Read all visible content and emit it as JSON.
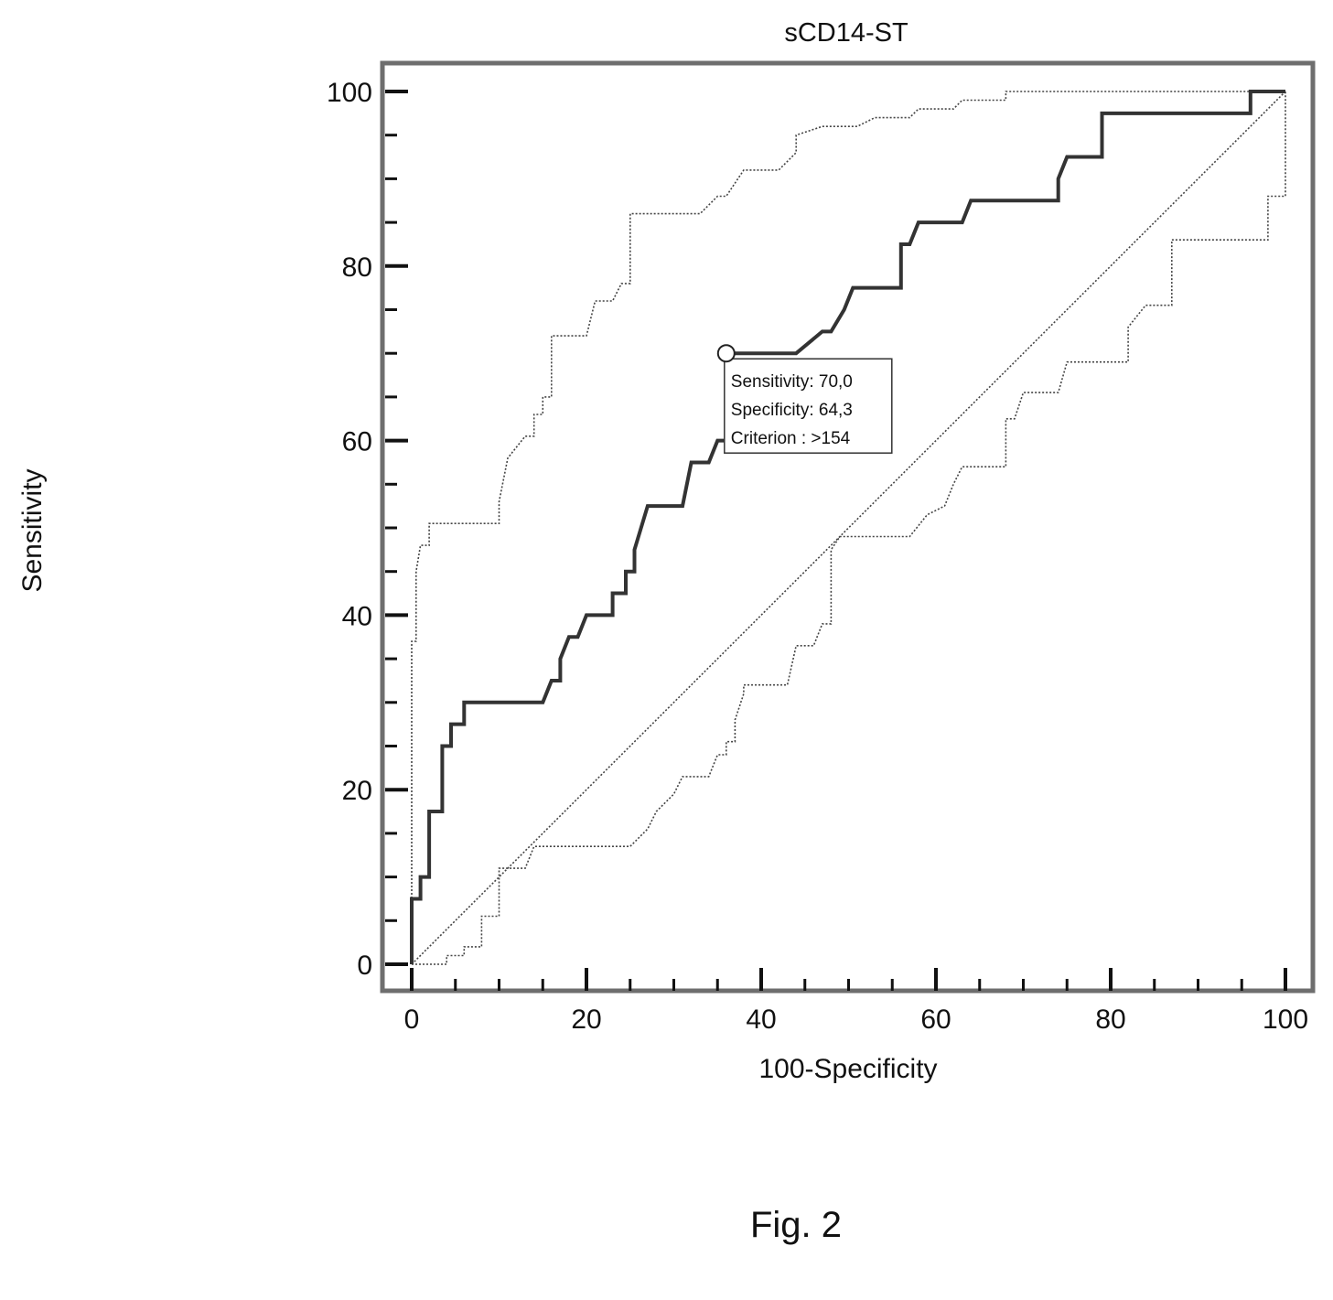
{
  "figure_caption": "Fig. 2",
  "chart_data": {
    "type": "line",
    "title": "sCD14-ST",
    "xlabel": "100-Specificity",
    "ylabel": "Sensitivity",
    "xlim": [
      0,
      100
    ],
    "ylim": [
      0,
      100
    ],
    "x_ticks": [
      0,
      20,
      40,
      60,
      80,
      100
    ],
    "y_ticks": [
      0,
      20,
      40,
      60,
      80,
      100
    ],
    "grid": false,
    "series": [
      {
        "style": "solid-thick",
        "points": [
          [
            0,
            0
          ],
          [
            0,
            7.5
          ],
          [
            1,
            7.5
          ],
          [
            1,
            10
          ],
          [
            2,
            10
          ],
          [
            2,
            17.5
          ],
          [
            3.5,
            17.5
          ],
          [
            3.5,
            25
          ],
          [
            4.5,
            25
          ],
          [
            4.5,
            27.5
          ],
          [
            6,
            27.5
          ],
          [
            6,
            30
          ],
          [
            15,
            30
          ],
          [
            16,
            32.5
          ],
          [
            17,
            32.5
          ],
          [
            17,
            35
          ],
          [
            18,
            37.5
          ],
          [
            19,
            37.5
          ],
          [
            20,
            40
          ],
          [
            23,
            40
          ],
          [
            23,
            42.5
          ],
          [
            24.5,
            42.5
          ],
          [
            24.5,
            45
          ],
          [
            25.5,
            45
          ],
          [
            25.5,
            47.5
          ],
          [
            27,
            52.5
          ],
          [
            31,
            52.5
          ],
          [
            32,
            57.5
          ],
          [
            34,
            57.5
          ],
          [
            35,
            60
          ],
          [
            36,
            60
          ],
          [
            36,
            70
          ],
          [
            44,
            70
          ],
          [
            47,
            72.5
          ],
          [
            48,
            72.5
          ],
          [
            49.5,
            75
          ],
          [
            50.5,
            77.5
          ],
          [
            56,
            77.5
          ],
          [
            56,
            82.5
          ],
          [
            57,
            82.5
          ],
          [
            58,
            85
          ],
          [
            63,
            85
          ],
          [
            64,
            87.5
          ],
          [
            74,
            87.5
          ],
          [
            74,
            90
          ],
          [
            75,
            92.5
          ],
          [
            79,
            92.5
          ],
          [
            79,
            97.5
          ],
          [
            96,
            97.5
          ],
          [
            96,
            100
          ],
          [
            100,
            100
          ]
        ]
      },
      {
        "style": "dotted-upper-ci",
        "points": [
          [
            0,
            0
          ],
          [
            0,
            37
          ],
          [
            0.5,
            37
          ],
          [
            0.5,
            45
          ],
          [
            1,
            48
          ],
          [
            2,
            48
          ],
          [
            2,
            50.5
          ],
          [
            10,
            50.5
          ],
          [
            10,
            53
          ],
          [
            11,
            58
          ],
          [
            13,
            60.5
          ],
          [
            14,
            60.5
          ],
          [
            14,
            63
          ],
          [
            15,
            63
          ],
          [
            15,
            65
          ],
          [
            16,
            65
          ],
          [
            16,
            72
          ],
          [
            20,
            72
          ],
          [
            21,
            76
          ],
          [
            23,
            76
          ],
          [
            24,
            78
          ],
          [
            25,
            78
          ],
          [
            25,
            86
          ],
          [
            33,
            86
          ],
          [
            35,
            88
          ],
          [
            36,
            88
          ],
          [
            38,
            91
          ],
          [
            42,
            91
          ],
          [
            44,
            93
          ],
          [
            44,
            95
          ],
          [
            47,
            96
          ],
          [
            51,
            96
          ],
          [
            53,
            97
          ],
          [
            57,
            97
          ],
          [
            58,
            98
          ],
          [
            62,
            98
          ],
          [
            63,
            99
          ],
          [
            68,
            99
          ],
          [
            68,
            100
          ],
          [
            100,
            100
          ]
        ]
      },
      {
        "style": "dotted-lower-ci",
        "points": [
          [
            0,
            0
          ],
          [
            4,
            0
          ],
          [
            4,
            1
          ],
          [
            6,
            1
          ],
          [
            6,
            2
          ],
          [
            8,
            2
          ],
          [
            8,
            5.5
          ],
          [
            10,
            5.5
          ],
          [
            10,
            11
          ],
          [
            13,
            11
          ],
          [
            14,
            13.5
          ],
          [
            25,
            13.5
          ],
          [
            27,
            15.5
          ],
          [
            28,
            17.5
          ],
          [
            30,
            19.5
          ],
          [
            31,
            21.5
          ],
          [
            34,
            21.5
          ],
          [
            35,
            24
          ],
          [
            36,
            24
          ],
          [
            36,
            25.5
          ],
          [
            37,
            25.5
          ],
          [
            37,
            28
          ],
          [
            38,
            31
          ],
          [
            38,
            32
          ],
          [
            43,
            32
          ],
          [
            44,
            36.5
          ],
          [
            46,
            36.5
          ],
          [
            47,
            39
          ],
          [
            48,
            39
          ],
          [
            48,
            47.5
          ],
          [
            49,
            49
          ],
          [
            57,
            49
          ],
          [
            59,
            51.5
          ],
          [
            61,
            52.5
          ],
          [
            62,
            55
          ],
          [
            63,
            57
          ],
          [
            68,
            57
          ],
          [
            68,
            62.5
          ],
          [
            69,
            62.5
          ],
          [
            70,
            65.5
          ],
          [
            74,
            65.5
          ],
          [
            75,
            69
          ],
          [
            82,
            69
          ],
          [
            82,
            73
          ],
          [
            84,
            75.5
          ],
          [
            87,
            75.5
          ],
          [
            87,
            83
          ],
          [
            98,
            83
          ],
          [
            98,
            88
          ],
          [
            100,
            88
          ],
          [
            100,
            100
          ]
        ]
      },
      {
        "style": "dotted-diagonal",
        "points": [
          [
            0,
            0
          ],
          [
            100,
            100
          ]
        ]
      }
    ],
    "annotation": {
      "point": [
        36,
        70
      ],
      "lines": [
        "Sensitivity: 70,0",
        "Specificity: 64,3",
        "Criterion : >154"
      ]
    }
  }
}
